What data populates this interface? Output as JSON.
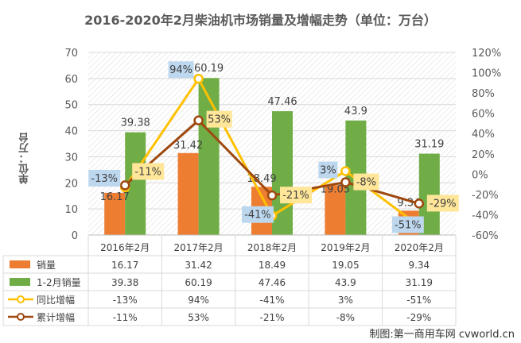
{
  "chart_data": {
    "type": "bar+line",
    "title": "2016-2020年2月柴油机市场销量及增幅走势（单位：万台）",
    "ylabel": "单位：万台",
    "categories": [
      "2016年2月",
      "2017年2月",
      "2018年2月",
      "2019年2月",
      "2020年2月"
    ],
    "ylim": [
      0,
      70
    ],
    "yticks": [
      0,
      10,
      20,
      30,
      40,
      50,
      60,
      70
    ],
    "y2lim": [
      -60,
      120
    ],
    "y2ticks": [
      "-60%",
      "-40%",
      "-20%",
      "0%",
      "20%",
      "40%",
      "60%",
      "80%",
      "100%",
      "120%"
    ],
    "grid": true,
    "legend": "table-bottom",
    "series": [
      {
        "name": "销量",
        "type": "bar",
        "color": "#ed7d31",
        "values": [
          16.17,
          31.42,
          18.49,
          19.05,
          9.34
        ],
        "labels": [
          "16.17",
          "31.42",
          "18.49",
          "19.05",
          "9.34"
        ]
      },
      {
        "name": "1-2月销量",
        "type": "bar",
        "color": "#70ad47",
        "values": [
          39.38,
          60.19,
          47.46,
          43.9,
          31.19
        ],
        "labels": [
          "39.38",
          "60.19",
          "47.46",
          "43.9",
          "31.19"
        ]
      },
      {
        "name": "同比增幅",
        "type": "line",
        "axis": "right",
        "color": "#ffc000",
        "label_bg": "#bdd7ee",
        "values": [
          -13,
          94,
          -41,
          3,
          -51
        ],
        "labels": [
          "-13%",
          "94%",
          "-41%",
          "3%",
          "-51%"
        ]
      },
      {
        "name": "累计增幅",
        "type": "line",
        "axis": "right",
        "color": "#9e480e",
        "label_bg": "#ffe699",
        "values": [
          -11,
          53,
          -21,
          -8,
          -29
        ],
        "labels": [
          "-11%",
          "53%",
          "-21%",
          "-8%",
          "-29%"
        ]
      }
    ]
  },
  "watermark": "制图:第一商用车网 cvworld.cn"
}
